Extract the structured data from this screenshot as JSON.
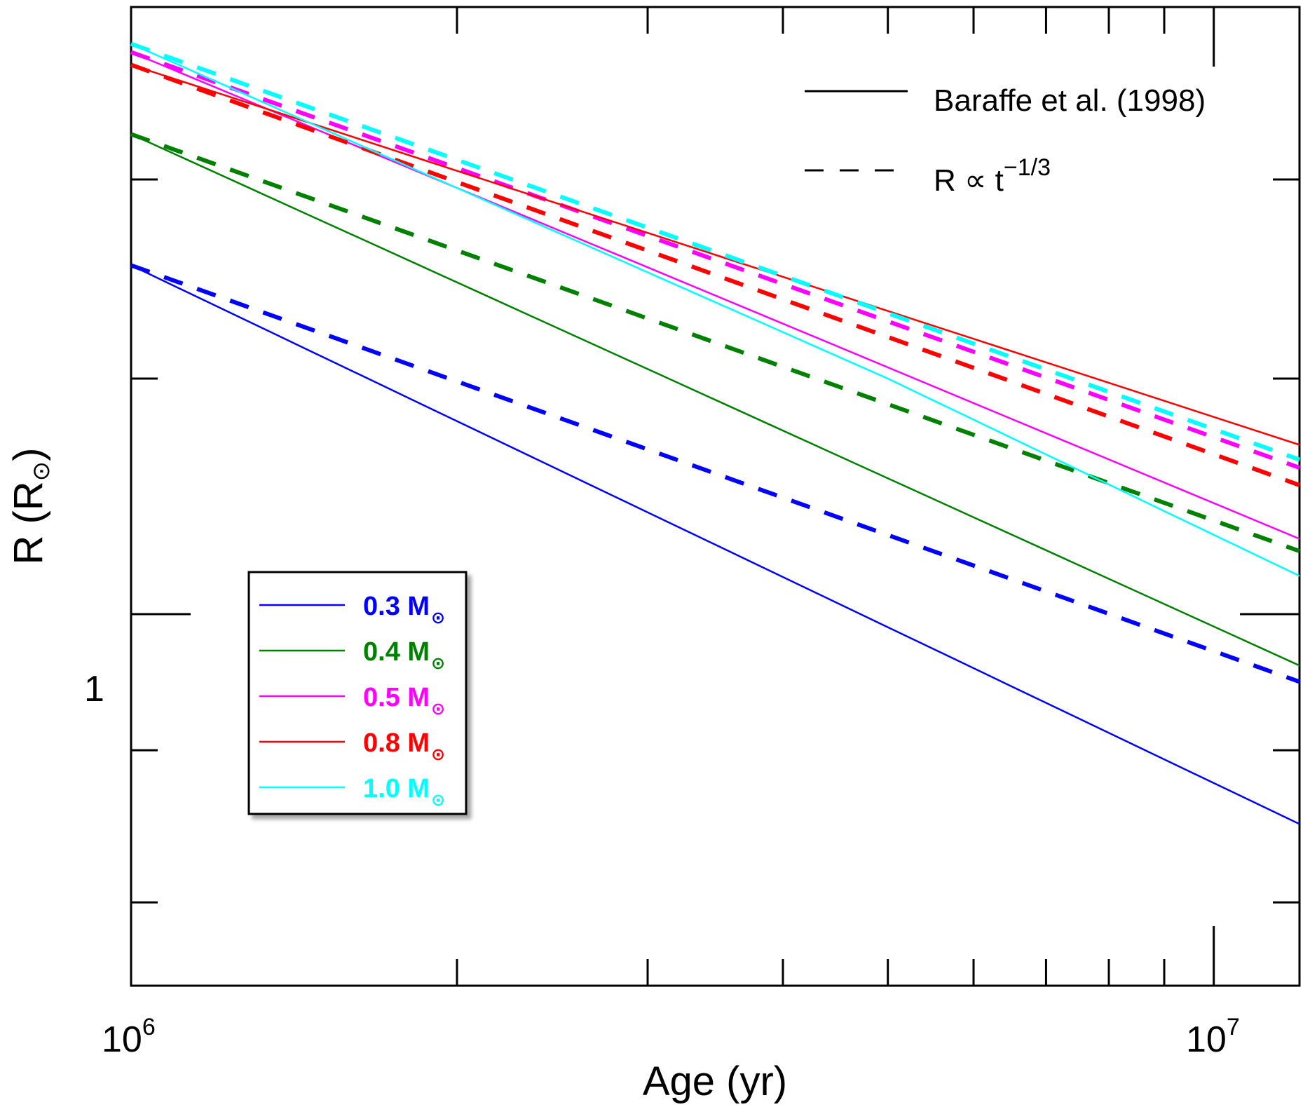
{
  "chart_data": {
    "type": "line",
    "title": "",
    "xlabel": "Age (yr)",
    "ylabel": "R (R",
    "ylabel_symbol": "⊙",
    "ylabel_close": ")",
    "xscale": "log",
    "yscale": "log",
    "xlim": [
      1000000,
      12000000
    ],
    "ylim": [
      0.75,
      1.6
    ],
    "x_tick_labels": [
      {
        "value": 1000000,
        "base": "10",
        "exp": "6"
      },
      {
        "value": 10000000,
        "base": "10",
        "exp": "7"
      }
    ],
    "y_tick_labels": [
      {
        "value": 1.0,
        "label": "1"
      }
    ],
    "x_minor_ticks": [
      2000000,
      3000000,
      4000000,
      5000000,
      6000000,
      7000000,
      8000000,
      9000000
    ],
    "y_minor_ticks": [
      0.8,
      0.9,
      1.2,
      1.4
    ],
    "line_style_legend": {
      "position": "top-right",
      "entries": [
        {
          "style": "solid",
          "label": "Baraffe et al. (1998)"
        },
        {
          "style": "dashed",
          "label_prefix": "R ∝ t",
          "label_exp": "−1/3"
        }
      ]
    },
    "mass_legend": {
      "position": "center-left",
      "symbol": "⊙"
    },
    "series": [
      {
        "name": "0.3 M",
        "color": "#0000ff",
        "baraffe": {
          "x": [
            1000000,
            12000000
          ],
          "y": [
            1.31,
            0.85
          ]
        },
        "power_law": {
          "x": [
            1000000,
            12000000
          ],
          "y": [
            1.31,
            0.949
          ]
        }
      },
      {
        "name": "0.4 M",
        "color": "#008000",
        "baraffe": {
          "x": [
            1000000,
            12000000
          ],
          "y": [
            1.45,
            0.961
          ]
        },
        "power_law": {
          "x": [
            1000000,
            12000000
          ],
          "y": [
            1.45,
            1.05
          ]
        }
      },
      {
        "name": "0.5 M",
        "color": "#ff00ff",
        "baraffe": {
          "x": [
            1000000,
            12000000
          ],
          "y": [
            1.545,
            1.06
          ]
        },
        "power_law": {
          "x": [
            1000000,
            12000000
          ],
          "y": [
            1.545,
            1.12
          ]
        }
      },
      {
        "name": "0.8 M",
        "color": "#ff0000",
        "baraffe": {
          "x": [
            1000000,
            12000000
          ],
          "y": [
            1.53,
            1.14
          ]
        },
        "power_law": {
          "x": [
            1000000,
            12000000
          ],
          "y": [
            1.53,
            1.105
          ]
        }
      },
      {
        "name": "1.0 M",
        "color": "#00ffff",
        "baraffe": {
          "x": [
            1000000,
            5000000,
            12000000
          ],
          "y": [
            1.555,
            1.2,
            1.03
          ]
        },
        "power_law": {
          "x": [
            1000000,
            12000000
          ],
          "y": [
            1.555,
            1.127
          ]
        }
      }
    ]
  }
}
